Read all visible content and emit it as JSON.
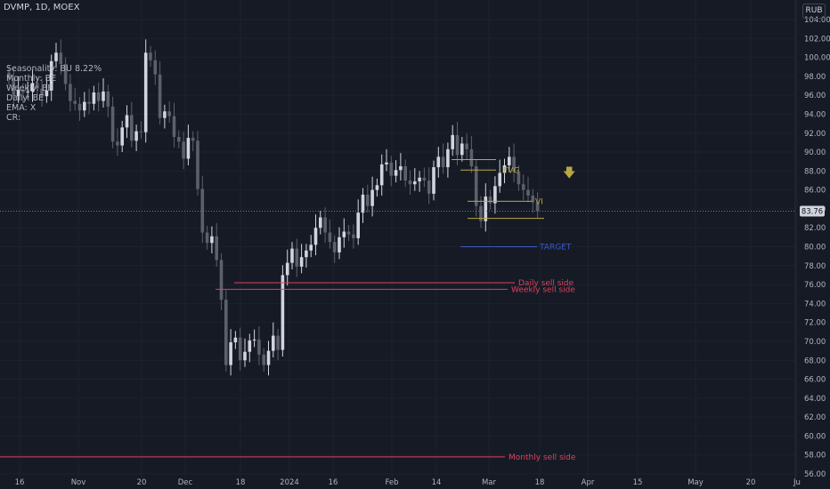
{
  "header": {
    "symbol": "DVMP, 1D, MOEX",
    "currency": "RUB"
  },
  "info_lines": [
    "Seasonality: BU 8.22%",
    "Monthly: BE",
    "Weekly: BE",
    "Daily: BE",
    "EMA: X",
    "CR:"
  ],
  "colors": {
    "background": "#161a25",
    "candle": "#d1d4dc",
    "grid": "#1e222d",
    "fvg": "#b8a742",
    "sell": "#e0405a",
    "target": "#3b5cc4"
  },
  "icons": {
    "arrow": "down-arrow-icon"
  },
  "chart_data": {
    "type": "candlestick",
    "ylim": [
      56,
      105
    ],
    "y_ticks": [
      56,
      58,
      60,
      62,
      64,
      66,
      68,
      70,
      72,
      74,
      76,
      78,
      80,
      82,
      84,
      86,
      88,
      90,
      92,
      94,
      96,
      98,
      100,
      102,
      104
    ],
    "x_labels": [
      "16",
      "Nov",
      "20",
      "Dec",
      "18",
      "2024",
      "16",
      "Feb",
      "14",
      "Mar",
      "18",
      "Apr",
      "15",
      "May",
      "20",
      "Ju"
    ],
    "last_price": "83.76",
    "candles_close": [
      97.8,
      95.9,
      96.6,
      96.3,
      96.4,
      97.3,
      96.7,
      95.9,
      96.5,
      99.6,
      100.5,
      99.3,
      97.2,
      95.4,
      95.1,
      94.4,
      95.3,
      95.1,
      96.3,
      95.4,
      96.4,
      94.8,
      91.1,
      90.7,
      92.6,
      93.9,
      91.2,
      92.2,
      92.1,
      100.5,
      99.7,
      98.2,
      93.6,
      94.3,
      93.8,
      91.6,
      91.1,
      89.3,
      91.5,
      91.2,
      86.1,
      81.5,
      80.4,
      81.1,
      78.6,
      74.4,
      67.5,
      69.9,
      70.4,
      68.0,
      68.9,
      70.1,
      70.2,
      68.6,
      67.5,
      69.0,
      70.6,
      69.1,
      77.0,
      78.3,
      79.8,
      77.9,
      78.9,
      79.6,
      80.2,
      82.0,
      83.1,
      81.5,
      80.5,
      79.4,
      81.0,
      81.6,
      81.3,
      80.9,
      83.6,
      85.5,
      84.3,
      86.0,
      86.5,
      88.7,
      88.9,
      87.5,
      88.1,
      88.5,
      87.0,
      86.6,
      86.9,
      87.3,
      87.0,
      85.6,
      88.4,
      89.5,
      88.4,
      90.3,
      91.8,
      89.7,
      90.9,
      90.3,
      88.5,
      84.3,
      82.7,
      85.3,
      84.6,
      86.4,
      87.8,
      88.6,
      89.5,
      87.9,
      86.6,
      86.0,
      85.4,
      84.7,
      83.76
    ],
    "levels": [
      {
        "label": "FVG",
        "value": 88.1
      },
      {
        "label": "VI",
        "value": 84.8
      },
      {
        "label": "TARGET",
        "value": 80.0
      },
      {
        "label": "Daily sell side",
        "value": 76.2
      },
      {
        "label": "Weekly sell side",
        "value": 75.5
      },
      {
        "label": "Monthly sell side",
        "value": 57.8
      }
    ]
  }
}
